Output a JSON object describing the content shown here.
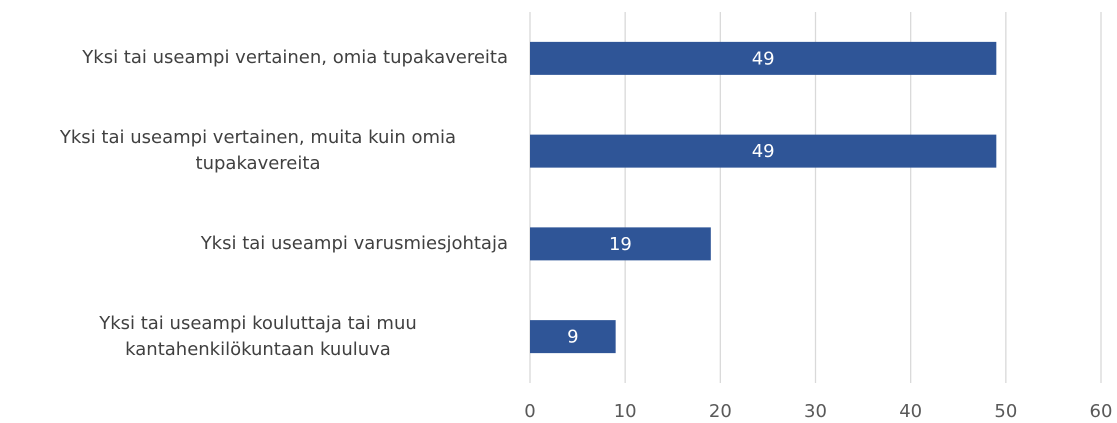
{
  "chart_data": {
    "type": "bar",
    "orientation": "horizontal",
    "categories": [
      "Yksi tai useampi vertainen, omia tupakavereita",
      "Yksi tai useampi vertainen, muita kuin omia tupakavereita",
      "Yksi tai useampi varusmiesjohtaja",
      "Yksi tai useampi kouluttaja tai muu kantahenkilökuntaan kuuluva"
    ],
    "values": [
      49,
      49,
      19,
      9
    ],
    "color": "#2f5597",
    "xlim": [
      0,
      60
    ],
    "xticks": [
      0,
      10,
      20,
      30,
      40,
      50,
      60
    ],
    "grid": true
  }
}
